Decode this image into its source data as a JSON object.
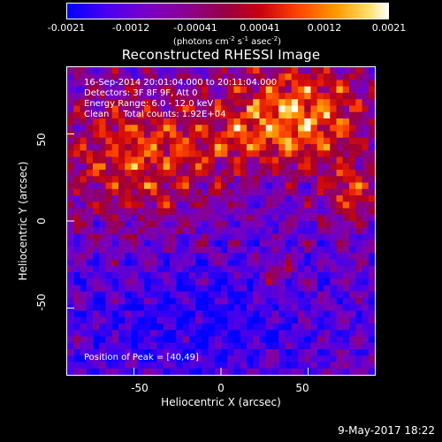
{
  "colorbar": {
    "ticks": [
      "-0.0021",
      "-0.0012",
      "-0.00041",
      "0.00041",
      "0.0012",
      "0.0021"
    ],
    "units_prefix": "(photons cm",
    "units_exp1": "-2",
    "units_mid1": " s",
    "units_exp2": "-1",
    "units_mid2": " asec",
    "units_exp3": "-2",
    "units_suffix": ")",
    "colors": [
      "#0000ff",
      "#7a00c8",
      "#9a0040",
      "#ff4500",
      "#ff9a00",
      "#ffffff"
    ]
  },
  "title": "Reconstructed RHESSI Image",
  "info": {
    "time_range": "16-Sep-2014 20:01:04.000 to 20:11:04.000",
    "detectors": "Detectors: 3F 8F 9F, Att 0",
    "energy": "Energy Range: 6.0 - 12.0 keV",
    "clean": "Clean     Total counts: 1.92E+04"
  },
  "peak": "Position of Peak = [40,49]",
  "axes": {
    "xlabel": "Heliocentric X (arcsec)",
    "ylabel": "Heliocentric Y (arcsec)",
    "x_ticks": [
      "-50",
      "0",
      "50"
    ],
    "y_ticks": [
      "-50",
      "0",
      "50"
    ],
    "x_range": [
      -95,
      95
    ],
    "y_range": [
      -95,
      95
    ]
  },
  "footer": {
    "date": "9-May-2017 18:22"
  }
}
